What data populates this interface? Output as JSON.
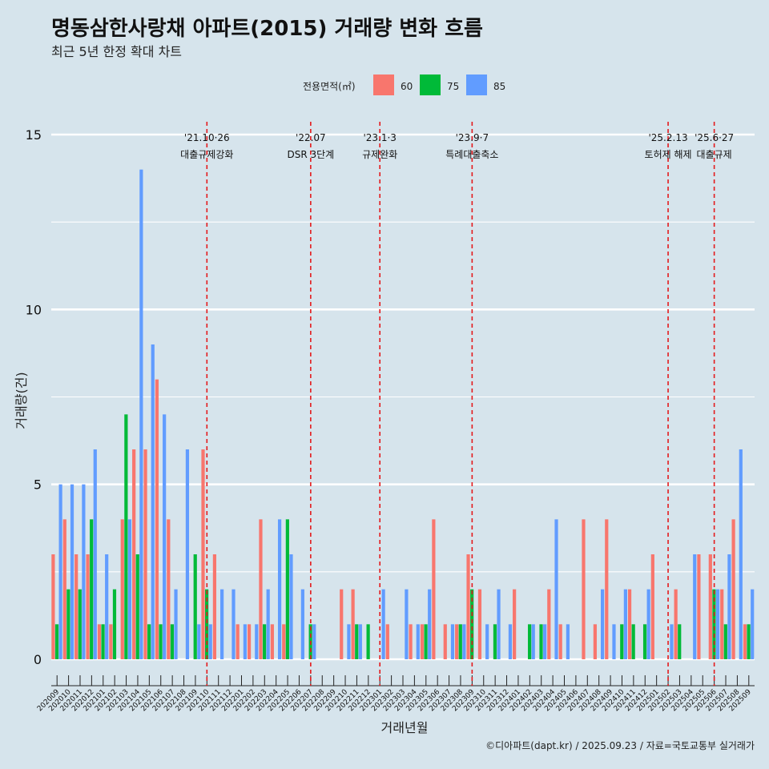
{
  "chart_data": {
    "type": "bar",
    "title": "명동삼한사랑채 아파트(2015) 거래량 변화 흐름",
    "subtitle": "최근 5년 한정 확대 차트",
    "xlabel": "거래년월",
    "ylabel": "거래량(건)",
    "ylim": [
      0,
      15
    ],
    "yticks": [
      0,
      5,
      10,
      15
    ],
    "grid": true,
    "legend": {
      "title": "전용면적(㎡)",
      "placement": "top-center",
      "items": [
        "60",
        "75",
        "85"
      ]
    },
    "caption": "©디아파트(dapt.kr) / 2025.09.23 / 자료=국토교통부 실거래가",
    "colors": {
      "60": "#f8766d",
      "75": "#00ba38",
      "85": "#619cff",
      "background": "#d6e4ec",
      "grid": "#ffffff",
      "vline": "#e41a1c"
    },
    "categories": [
      "202009",
      "202010",
      "202011",
      "202012",
      "202101",
      "202102",
      "202103",
      "202104",
      "202105",
      "202106",
      "202107",
      "202108",
      "202109",
      "202110",
      "202111",
      "202112",
      "202201",
      "202202",
      "202203",
      "202204",
      "202205",
      "202206",
      "202207",
      "202208",
      "202209",
      "202210",
      "202211",
      "202212",
      "202301",
      "202302",
      "202303",
      "202304",
      "202305",
      "202306",
      "202307",
      "202308",
      "202309",
      "202310",
      "202311",
      "202312",
      "202401",
      "202402",
      "202403",
      "202404",
      "202405",
      "202406",
      "202407",
      "202408",
      "202409",
      "202410",
      "202411",
      "202412",
      "202501",
      "202502",
      "202503",
      "202504",
      "202505",
      "202506",
      "202507",
      "202508",
      "202509"
    ],
    "series": [
      {
        "name": "60",
        "values": [
          3,
          4,
          3,
          3,
          1,
          1,
          4,
          6,
          6,
          8,
          4,
          0,
          0,
          6,
          3,
          0,
          1,
          1,
          4,
          1,
          1,
          0,
          0,
          0,
          0,
          2,
          2,
          0,
          0,
          1,
          0,
          1,
          1,
          4,
          1,
          1,
          3,
          2,
          0,
          0,
          2,
          0,
          0,
          2,
          1,
          0,
          4,
          1,
          4,
          0,
          2,
          0,
          3,
          0,
          2,
          0,
          3,
          3,
          2,
          4,
          1
        ]
      },
      {
        "name": "75",
        "values": [
          1,
          2,
          2,
          4,
          1,
          2,
          7,
          3,
          1,
          1,
          1,
          0,
          3,
          2,
          0,
          0,
          0,
          0,
          1,
          0,
          4,
          0,
          1,
          0,
          0,
          0,
          1,
          1,
          0,
          0,
          0,
          0,
          1,
          0,
          0,
          1,
          2,
          0,
          1,
          0,
          0,
          1,
          1,
          0,
          0,
          0,
          0,
          0,
          0,
          1,
          1,
          1,
          0,
          0,
          1,
          0,
          0,
          2,
          1,
          0,
          1
        ]
      },
      {
        "name": "85",
        "values": [
          5,
          5,
          5,
          6,
          3,
          0,
          4,
          14,
          9,
          7,
          2,
          6,
          1,
          1,
          2,
          2,
          1,
          1,
          2,
          4,
          3,
          2,
          1,
          0,
          0,
          1,
          1,
          0,
          2,
          0,
          2,
          1,
          2,
          0,
          1,
          1,
          0,
          1,
          2,
          1,
          0,
          1,
          1,
          4,
          1,
          0,
          0,
          2,
          1,
          2,
          0,
          2,
          0,
          1,
          0,
          3,
          0,
          2,
          3,
          6,
          2
        ]
      }
    ],
    "annotations": [
      {
        "x": "202110",
        "date": "'21.10·26",
        "label": "대출규제강화"
      },
      {
        "x": "202207",
        "date": "'22.07",
        "label": "DSR 3단계"
      },
      {
        "x": "202301",
        "date": "'23.1·3",
        "label": "규제완화"
      },
      {
        "x": "202309",
        "date": "'23.9·7",
        "label": "특례대출축소"
      },
      {
        "x": "202502",
        "date": "'25.2.13",
        "label": "토허제 해제"
      },
      {
        "x": "202506",
        "date": "'25.6·27",
        "label": "대출규제"
      }
    ]
  }
}
